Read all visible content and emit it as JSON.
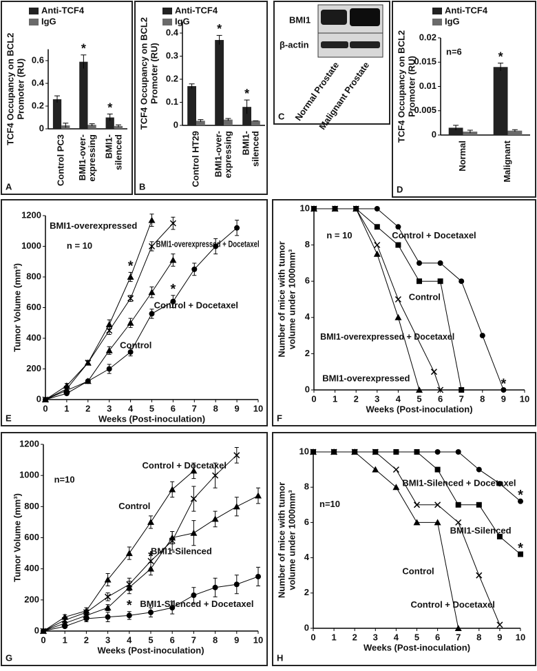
{
  "chart_data": [
    {
      "type": "bar",
      "panel_label": "A",
      "y_label": [
        "TCF4 Occupancy on BCL2",
        "Promoter (RU)"
      ],
      "categories": [
        [
          "Control PC3"
        ],
        [
          "BMI1-over-",
          "expressing"
        ],
        [
          "BMI1-",
          "silenced"
        ]
      ],
      "series": [
        {
          "name": "Anti-TCF4",
          "color": "#222222",
          "values": [
            0.26,
            0.59,
            0.1
          ],
          "errors": [
            0.03,
            0.06,
            0.03
          ],
          "significant": [
            null,
            "*",
            "*"
          ]
        },
        {
          "name": "IgG",
          "color": "#6a6a6a",
          "values": [
            0.03,
            0.035,
            0.025
          ],
          "errors": [
            0.02,
            0.01,
            0.01
          ]
        }
      ],
      "ylim": [
        0,
        0.7
      ],
      "yticks": [
        0,
        0.2,
        0.4,
        0.6
      ]
    },
    {
      "type": "bar",
      "panel_label": "B",
      "y_label": [
        "TCF4 Occupancy on BCL2",
        "Promoter (RU)"
      ],
      "categories": [
        [
          "Control HT29"
        ],
        [
          "BMI1-over-",
          "expressing"
        ],
        [
          "BMI1-",
          "silenced"
        ]
      ],
      "series": [
        {
          "name": "Anti-TCF4",
          "color": "#222222",
          "values": [
            0.17,
            0.37,
            0.08
          ],
          "errors": [
            0.01,
            0.02,
            0.03
          ],
          "significant": [
            null,
            "*",
            "*"
          ]
        },
        {
          "name": "IgG",
          "color": "#6a6a6a",
          "values": [
            0.02,
            0.025,
            0.02
          ],
          "errors": [
            0.005,
            0.005,
            0
          ]
        }
      ],
      "ylim": [
        0,
        0.45
      ],
      "yticks": [
        0,
        0.1,
        0.2,
        0.3,
        0.4
      ]
    },
    {
      "type": "bar",
      "panel_label": "D",
      "y_label": [
        "TCF4 Occupancy on BCL2",
        "Promoter (RU)"
      ],
      "note": "n=6",
      "categories": [
        [
          "Normal"
        ],
        [
          "Malignant"
        ]
      ],
      "series": [
        {
          "name": "Anti-TCF4",
          "color": "#222222",
          "values": [
            0.0015,
            0.014
          ],
          "errors": [
            0.0005,
            0.0008
          ],
          "significant": [
            null,
            "*"
          ]
        },
        {
          "name": "IgG",
          "color": "#6a6a6a",
          "values": [
            0.0007,
            0.0009
          ],
          "errors": [
            0.0003,
            0.0002
          ]
        }
      ],
      "ylim": [
        0,
        0.02
      ],
      "yticks": [
        0,
        0.005,
        0.01,
        0.015,
        0.02
      ]
    },
    {
      "type": "line",
      "panel_label": "E",
      "y_label": [
        "Tumor Volume  (mm³)"
      ],
      "x_label": "Weeks (Post-inoculation)",
      "note": "n = 10",
      "xlim": [
        0,
        10
      ],
      "xticks": [
        0,
        1,
        2,
        3,
        4,
        5,
        6,
        7,
        8,
        9,
        10
      ],
      "ylim": [
        0,
        1200
      ],
      "yticks": [
        0,
        200,
        400,
        600,
        800,
        1000,
        1200
      ],
      "series": [
        {
          "name": "BMI1-overexpressed",
          "color": "#000000",
          "marker": "triangle",
          "x": [
            0,
            1,
            2,
            3,
            4,
            5
          ],
          "values": [
            0,
            90,
            240,
            490,
            800,
            1170
          ],
          "errors": [
            0,
            15,
            15,
            30,
            30,
            40
          ],
          "significant": [
            null,
            null,
            null,
            null,
            "*",
            null
          ]
        },
        {
          "name": "BMI1-overexpressed + Docetaxel",
          "color": "#000000",
          "marker": "x",
          "x": [
            0,
            1,
            2,
            3,
            4,
            5,
            6
          ],
          "values": [
            0,
            70,
            240,
            450,
            660,
            1000,
            1150
          ],
          "errors": [
            0,
            10,
            15,
            25,
            20,
            30,
            40
          ]
        },
        {
          "name": "Control",
          "color": "#000000",
          "marker": "triangle",
          "x": [
            0,
            1,
            2,
            3,
            4,
            5,
            6
          ],
          "values": [
            0,
            60,
            120,
            320,
            500,
            700,
            910
          ],
          "errors": [
            0,
            10,
            10,
            25,
            30,
            35,
            40
          ]
        },
        {
          "name": "Control + Docetaxel",
          "color": "#000000",
          "marker": "circle",
          "x": [
            0,
            1,
            2,
            3,
            4,
            5,
            6,
            7,
            8,
            9
          ],
          "values": [
            0,
            40,
            120,
            200,
            310,
            560,
            640,
            850,
            1000,
            1120
          ],
          "errors": [
            0,
            10,
            10,
            30,
            25,
            30,
            40,
            40,
            50,
            50
          ],
          "significant": [
            null,
            null,
            null,
            null,
            null,
            null,
            "*",
            null,
            null,
            null
          ]
        }
      ]
    },
    {
      "type": "line",
      "panel_label": "F",
      "y_label": [
        "Number of mice with tumor",
        "volume under 1000mm³"
      ],
      "x_label": "Weeks (Post-inoculation)",
      "note": "n = 10",
      "xlim": [
        0,
        10
      ],
      "xticks": [
        0,
        1,
        2,
        3,
        4,
        5,
        6,
        7,
        8,
        9,
        10
      ],
      "ylim": [
        0,
        10
      ],
      "yticks": [
        0,
        2,
        4,
        6,
        8,
        10
      ],
      "series": [
        {
          "name": "BMI1-overexpressed",
          "color": "#000000",
          "marker": "triangle",
          "x": [
            0,
            1,
            2,
            3,
            4,
            5
          ],
          "values": [
            10,
            10,
            10,
            7.5,
            4,
            0
          ]
        },
        {
          "name": "BMI1-overexpressed + Docetaxel",
          "color": "#000000",
          "marker": "x",
          "x": [
            0,
            1,
            2,
            3,
            4,
            5.7,
            6
          ],
          "values": [
            10,
            10,
            10,
            8,
            5,
            1,
            0
          ]
        },
        {
          "name": "Control",
          "color": "#000000",
          "marker": "square",
          "x": [
            0,
            1,
            2,
            3,
            4,
            5,
            6,
            7
          ],
          "values": [
            10,
            10,
            10,
            9,
            8,
            6,
            6,
            0
          ]
        },
        {
          "name": "Control + Docetaxel",
          "color": "#000000",
          "marker": "circle",
          "x": [
            0,
            1,
            2,
            3,
            4,
            5,
            6,
            7,
            8,
            9
          ],
          "values": [
            10,
            10,
            10,
            10,
            9,
            7,
            7,
            6,
            3,
            0
          ],
          "significant": [
            null,
            null,
            null,
            null,
            null,
            null,
            null,
            null,
            null,
            "*"
          ]
        }
      ]
    },
    {
      "type": "line",
      "panel_label": "G",
      "y_label": [
        "Tumor Volume  (mm³)"
      ],
      "x_label": "Weeks (Post-inoculation)",
      "note": "n=10",
      "xlim": [
        0,
        10
      ],
      "xticks": [
        0,
        1,
        2,
        3,
        4,
        5,
        6,
        7,
        8,
        9,
        10
      ],
      "ylim": [
        0,
        1200
      ],
      "yticks": [
        0,
        200,
        400,
        600,
        800,
        1000,
        1200
      ],
      "series": [
        {
          "name": "Control + Docetaxel",
          "color": "#000000",
          "marker": "triangle",
          "x": [
            0,
            1,
            2,
            3,
            4,
            5,
            6,
            7
          ],
          "values": [
            0,
            90,
            130,
            330,
            500,
            700,
            910,
            1030
          ],
          "errors": [
            0,
            15,
            20,
            40,
            40,
            40,
            50,
            50
          ]
        },
        {
          "name": "Control",
          "color": "#000000",
          "marker": "x",
          "x": [
            0,
            1,
            2,
            3,
            4,
            5,
            6,
            7,
            8,
            9
          ],
          "values": [
            0,
            70,
            120,
            220,
            300,
            450,
            580,
            850,
            1000,
            1130
          ],
          "errors": [
            0,
            10,
            15,
            25,
            40,
            50,
            60,
            80,
            80,
            50
          ]
        },
        {
          "name": "BMI1-Silenced",
          "color": "#000000",
          "marker": "triangle",
          "x": [
            0,
            1,
            2,
            3,
            4,
            5,
            6,
            7,
            8,
            9,
            10
          ],
          "values": [
            0,
            50,
            100,
            150,
            280,
            400,
            600,
            630,
            720,
            800,
            870
          ],
          "errors": [
            0,
            10,
            15,
            20,
            40,
            40,
            40,
            80,
            50,
            60,
            50
          ],
          "significant": [
            null,
            null,
            null,
            null,
            null,
            "*",
            null,
            null,
            null,
            null,
            null
          ]
        },
        {
          "name": "BMI1-Silenced + Docetaxel",
          "color": "#000000",
          "marker": "circle",
          "x": [
            0,
            1,
            2,
            3,
            4,
            5,
            6,
            7,
            8,
            9,
            10
          ],
          "values": [
            0,
            30,
            80,
            90,
            100,
            120,
            150,
            230,
            280,
            300,
            350
          ],
          "errors": [
            0,
            10,
            20,
            30,
            25,
            30,
            40,
            50,
            60,
            60,
            60
          ],
          "significant": [
            null,
            null,
            null,
            null,
            "*",
            null,
            null,
            null,
            null,
            null,
            null
          ]
        }
      ]
    },
    {
      "type": "line",
      "panel_label": "H",
      "y_label": [
        "Number of mice with tumor",
        "volume under 1000mm³"
      ],
      "x_label": "Weeks (Post-inoculation)",
      "note": "n=10",
      "xlim": [
        0,
        10
      ],
      "xticks": [
        0,
        1,
        2,
        3,
        4,
        5,
        6,
        7,
        8,
        9,
        10
      ],
      "ylim": [
        0,
        10
      ],
      "yticks": [
        0,
        2,
        4,
        6,
        8,
        10
      ],
      "series": [
        {
          "name": "Control",
          "color": "#000000",
          "marker": "triangle",
          "x": [
            0,
            1,
            2,
            3,
            4,
            5,
            6,
            7
          ],
          "values": [
            10,
            10,
            10,
            9,
            8,
            6,
            6,
            0
          ]
        },
        {
          "name": "Control + Docetaxel",
          "color": "#000000",
          "marker": "x",
          "x": [
            0,
            1,
            2,
            3,
            4,
            5,
            6,
            7,
            8,
            9
          ],
          "values": [
            10,
            10,
            10,
            10,
            9,
            7,
            7,
            6,
            3,
            0.2
          ]
        },
        {
          "name": "BMI1-Silenced",
          "color": "#000000",
          "marker": "square",
          "x": [
            0,
            1,
            2,
            3,
            4,
            5,
            6,
            7,
            8,
            9,
            10
          ],
          "values": [
            10,
            10,
            10,
            10,
            10,
            10,
            9,
            7,
            7,
            5.2,
            4.2
          ],
          "significant": [
            null,
            null,
            null,
            null,
            null,
            null,
            null,
            null,
            null,
            null,
            "*"
          ]
        },
        {
          "name": "BMI1-Silenced + Docetaxel",
          "color": "#000000",
          "marker": "circle",
          "x": [
            0,
            1,
            2,
            3,
            4,
            5,
            6,
            7,
            8,
            9,
            10
          ],
          "values": [
            10,
            10,
            10,
            10,
            10,
            10,
            10,
            10,
            9,
            8.2,
            7.2
          ],
          "significant": [
            null,
            null,
            null,
            null,
            null,
            null,
            null,
            null,
            null,
            null,
            "*"
          ]
        }
      ]
    }
  ],
  "blot": {
    "panel_label": "C",
    "rows": [
      "BMI1",
      "β-actin"
    ],
    "lanes": [
      "Normal Prostate",
      "Malignant Prostate"
    ]
  }
}
